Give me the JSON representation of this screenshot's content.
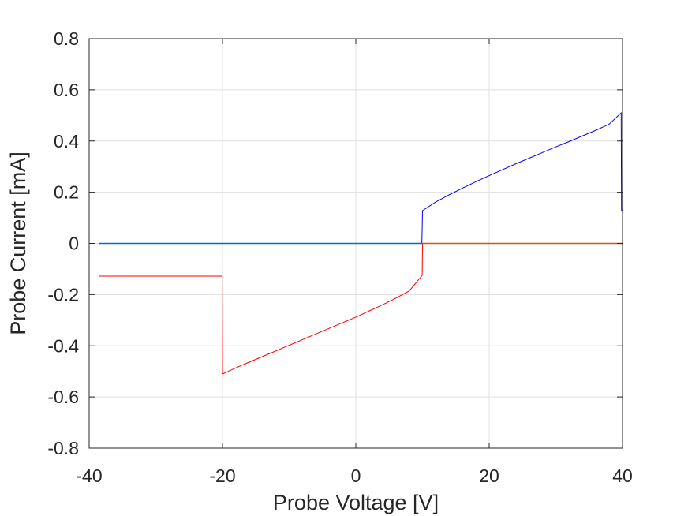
{
  "chart_data": {
    "type": "line",
    "xlabel": "Probe Voltage [V]",
    "ylabel": "Probe Current [mA]",
    "xlim": [
      -40,
      40
    ],
    "ylim": [
      -0.8,
      0.8
    ],
    "xticks": [
      -40,
      -20,
      0,
      20,
      40
    ],
    "xtick_labels": [
      "-40",
      "-20",
      "0",
      "20",
      "40"
    ],
    "yticks": [
      -0.8,
      -0.6,
      -0.4,
      -0.2,
      0,
      0.2,
      0.4,
      0.6,
      0.8
    ],
    "ytick_labels": [
      "-0.8",
      "-0.6",
      "-0.4",
      "-0.2",
      "0",
      "0.2",
      "0.4",
      "0.6",
      "0.8"
    ],
    "grid": true,
    "series": [
      {
        "color": "#0000ff",
        "x": [
          -38.5,
          9.9,
          9.95,
          10,
          12,
          14,
          16,
          18,
          20,
          22,
          24,
          26,
          28,
          30,
          32,
          34,
          36,
          38,
          39.8,
          39.85,
          40
        ],
        "y": [
          0,
          0,
          0.06,
          0.128,
          0.162,
          0.19,
          0.216,
          0.241,
          0.265,
          0.288,
          0.311,
          0.333,
          0.355,
          0.377,
          0.398,
          0.42,
          0.442,
          0.466,
          0.51,
          0.13,
          0.13
        ]
      },
      {
        "color": "#ff0000",
        "x": [
          -38.5,
          -20.05,
          -20,
          -18,
          -16,
          -14,
          -12,
          -10,
          -8,
          -6,
          -4,
          -2,
          0,
          2,
          4,
          6,
          8,
          9.95,
          10,
          40
        ],
        "y": [
          -0.128,
          -0.128,
          -0.51,
          -0.486,
          -0.464,
          -0.442,
          -0.42,
          -0.398,
          -0.376,
          -0.354,
          -0.332,
          -0.31,
          -0.288,
          -0.264,
          -0.24,
          -0.214,
          -0.186,
          -0.125,
          0,
          0
        ]
      },
      {
        "color": "#0072bd",
        "x": [
          -38.5,
          10
        ],
        "y": [
          0,
          0
        ]
      },
      {
        "color": "#d95319",
        "x": [
          10,
          40
        ],
        "y": [
          0,
          0
        ]
      }
    ]
  }
}
